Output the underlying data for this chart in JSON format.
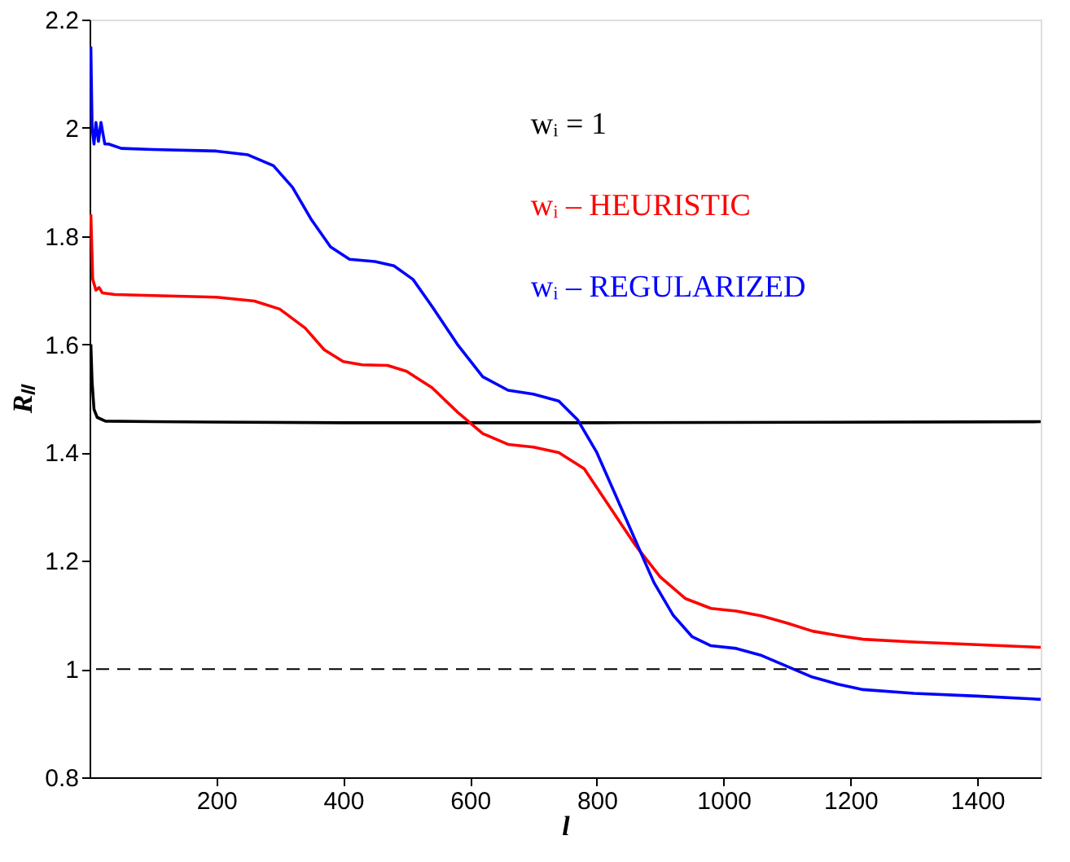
{
  "chart_data": {
    "type": "line",
    "xlabel": "l",
    "ylabel": "Rₗₗ",
    "xlim": [
      0,
      1500
    ],
    "ylim": [
      0.8,
      2.2
    ],
    "xticks": [
      200,
      400,
      600,
      800,
      1000,
      1200,
      1400
    ],
    "yticks": [
      0.8,
      1,
      1.2,
      1.4,
      1.6,
      1.8,
      2,
      2.2
    ],
    "grid": false,
    "legend": "top right",
    "line_style": "solid",
    "marker": "none",
    "series": [
      {
        "name": "wᵢ = 1",
        "color": "#000000",
        "x": [
          2,
          4,
          7,
          12,
          25,
          100,
          400,
          800,
          1500
        ],
        "values": [
          1.6,
          1.53,
          1.48,
          1.465,
          1.458,
          1.457,
          1.455,
          1.455,
          1.457
        ]
      },
      {
        "name": "wᵢ – HEURISTIC",
        "color": "#ff0000",
        "x": [
          2,
          5,
          10,
          15,
          20,
          40,
          100,
          200,
          260,
          300,
          340,
          370,
          400,
          430,
          470,
          500,
          540,
          580,
          620,
          660,
          700,
          740,
          780,
          820,
          860,
          900,
          940,
          980,
          1020,
          1060,
          1100,
          1140,
          1180,
          1220,
          1300,
          1400,
          1500
        ],
        "values": [
          1.84,
          1.72,
          1.7,
          1.705,
          1.695,
          1.692,
          1.69,
          1.687,
          1.68,
          1.665,
          1.63,
          1.59,
          1.568,
          1.562,
          1.561,
          1.55,
          1.52,
          1.475,
          1.435,
          1.415,
          1.41,
          1.4,
          1.37,
          1.3,
          1.23,
          1.17,
          1.13,
          1.112,
          1.107,
          1.098,
          1.085,
          1.07,
          1.062,
          1.055,
          1.05,
          1.045,
          1.04
        ]
      },
      {
        "name": "wᵢ – REGULARIZED",
        "color": "#0000ff",
        "x": [
          2,
          4,
          7,
          10,
          14,
          18,
          24,
          30,
          50,
          100,
          200,
          250,
          290,
          320,
          350,
          380,
          410,
          450,
          480,
          510,
          540,
          580,
          620,
          660,
          700,
          740,
          770,
          800,
          830,
          860,
          890,
          920,
          950,
          980,
          1020,
          1060,
          1100,
          1140,
          1180,
          1220,
          1300,
          1400,
          1500
        ],
        "values": [
          2.15,
          2.0,
          1.97,
          2.01,
          1.975,
          2.01,
          1.97,
          1.97,
          1.962,
          1.96,
          1.957,
          1.95,
          1.93,
          1.89,
          1.83,
          1.78,
          1.757,
          1.753,
          1.745,
          1.72,
          1.67,
          1.6,
          1.54,
          1.515,
          1.508,
          1.495,
          1.46,
          1.4,
          1.32,
          1.24,
          1.16,
          1.1,
          1.06,
          1.043,
          1.038,
          1.025,
          1.005,
          0.985,
          0.972,
          0.962,
          0.955,
          0.95,
          0.944
        ]
      }
    ],
    "ref_lines": [
      {
        "axis": "y",
        "value": 1,
        "color": "#000000",
        "line_style": "dashed"
      }
    ]
  }
}
